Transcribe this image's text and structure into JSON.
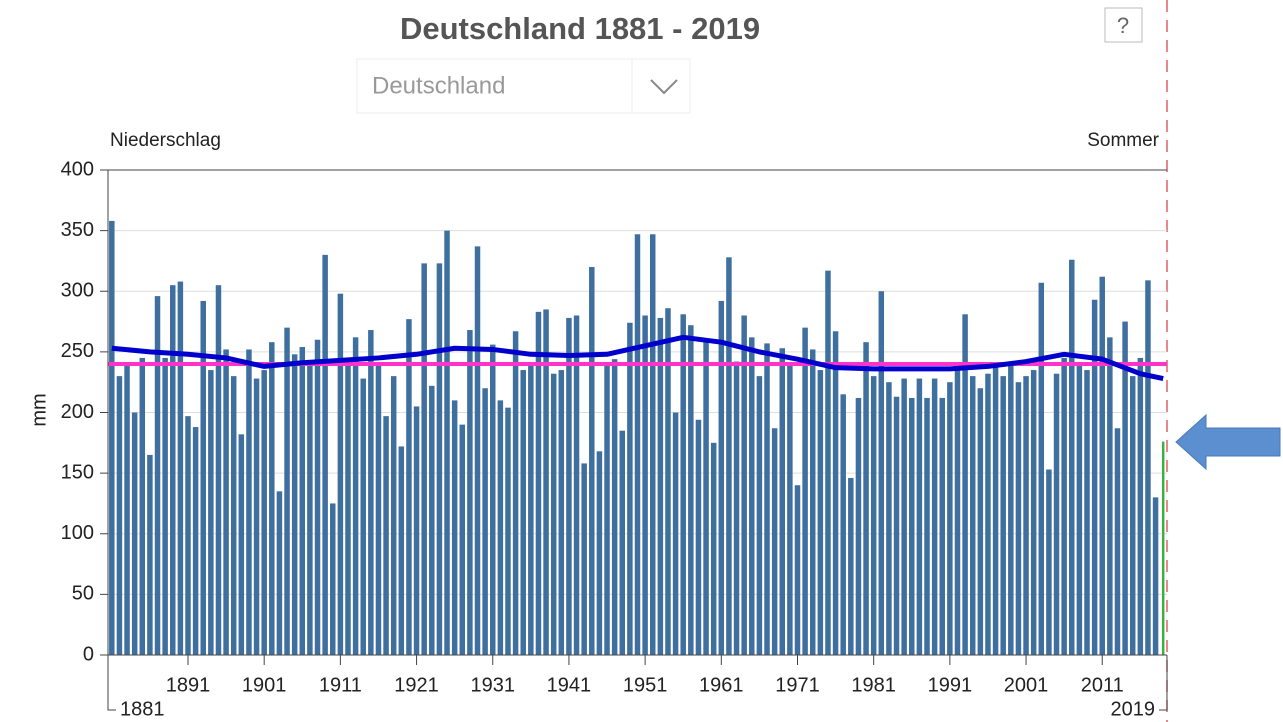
{
  "chart_data": {
    "type": "bar",
    "title": "Deutschland 1881 - 2019",
    "dropdown": "Deutschland",
    "help": "?",
    "left_label": "Niederschlag",
    "right_label": "Sommer",
    "y_label": "mm",
    "x": [
      1881,
      1882,
      1883,
      1884,
      1885,
      1886,
      1887,
      1888,
      1889,
      1890,
      1891,
      1892,
      1893,
      1894,
      1895,
      1896,
      1897,
      1898,
      1899,
      1900,
      1901,
      1902,
      1903,
      1904,
      1905,
      1906,
      1907,
      1908,
      1909,
      1910,
      1911,
      1912,
      1913,
      1914,
      1915,
      1916,
      1917,
      1918,
      1919,
      1920,
      1921,
      1922,
      1923,
      1924,
      1925,
      1926,
      1927,
      1928,
      1929,
      1930,
      1931,
      1932,
      1933,
      1934,
      1935,
      1936,
      1937,
      1938,
      1939,
      1940,
      1941,
      1942,
      1943,
      1944,
      1945,
      1946,
      1947,
      1948,
      1949,
      1950,
      1951,
      1952,
      1953,
      1954,
      1955,
      1956,
      1957,
      1958,
      1959,
      1960,
      1961,
      1962,
      1963,
      1964,
      1965,
      1966,
      1967,
      1968,
      1969,
      1970,
      1971,
      1972,
      1973,
      1974,
      1975,
      1976,
      1977,
      1978,
      1979,
      1980,
      1981,
      1982,
      1983,
      1984,
      1985,
      1986,
      1987,
      1988,
      1989,
      1990,
      1991,
      1992,
      1993,
      1994,
      1995,
      1996,
      1997,
      1998,
      1999,
      2000,
      2001,
      2002,
      2003,
      2004,
      2005,
      2006,
      2007,
      2008,
      2009,
      2010,
      2011,
      2012,
      2013,
      2014,
      2015,
      2016,
      2017,
      2018,
      2019
    ],
    "values": [
      358,
      230,
      240,
      200,
      245,
      165,
      296,
      245,
      305,
      308,
      197,
      188,
      292,
      235,
      305,
      252,
      230,
      182,
      252,
      228,
      235,
      258,
      135,
      270,
      248,
      254,
      240,
      260,
      330,
      125,
      298,
      240,
      262,
      228,
      268,
      240,
      197,
      230,
      172,
      277,
      205,
      323,
      222,
      323,
      350,
      210,
      190,
      268,
      337,
      220,
      256,
      210,
      204,
      267,
      235,
      240,
      283,
      285,
      232,
      235,
      278,
      280,
      158,
      320,
      168,
      240,
      244,
      185,
      274,
      347,
      280,
      347,
      278,
      286,
      200,
      281,
      272,
      194,
      260,
      175,
      292,
      328,
      242,
      280,
      262,
      230,
      257,
      187,
      253,
      240,
      140,
      270,
      252,
      235,
      317,
      267,
      215,
      146,
      212,
      258,
      230,
      300,
      225,
      213,
      228,
      212,
      228,
      212,
      228,
      212,
      225,
      238,
      281,
      230,
      220,
      232,
      240,
      230,
      240,
      225,
      230,
      235,
      307,
      153,
      232,
      245,
      326,
      240,
      235,
      293,
      312,
      262,
      187,
      275,
      230,
      245,
      309,
      130,
      176
    ],
    "color": "#3f6f9f",
    "highlight": {
      "index": 138,
      "color": "#3cb043"
    },
    "trend": {
      "color": "#0000cc",
      "x": [
        1881,
        1886,
        1891,
        1896,
        1901,
        1906,
        1911,
        1916,
        1921,
        1926,
        1931,
        1936,
        1941,
        1946,
        1951,
        1956,
        1961,
        1966,
        1971,
        1976,
        1981,
        1986,
        1991,
        1996,
        2001,
        2006,
        2011,
        2016,
        2019
      ],
      "values": [
        253,
        250,
        248,
        245,
        238,
        241,
        243,
        245,
        248,
        253,
        252,
        248,
        247,
        248,
        255,
        262,
        258,
        250,
        244,
        237,
        236,
        236,
        236,
        238,
        242,
        248,
        244,
        232,
        228
      ]
    },
    "mean": {
      "value": 240,
      "color": "#ff33cc"
    },
    "xlim": [
      1880.5,
      2019.5
    ],
    "xticks": [
      1891,
      1901,
      1911,
      1921,
      1931,
      1941,
      1951,
      1961,
      1971,
      1981,
      1991,
      2001,
      2011
    ],
    "range_labels": [
      1881,
      2019
    ],
    "ylim": [
      0,
      400
    ],
    "yticks": [
      0,
      50,
      100,
      150,
      200,
      250,
      300,
      350,
      400
    ],
    "grid": true
  }
}
